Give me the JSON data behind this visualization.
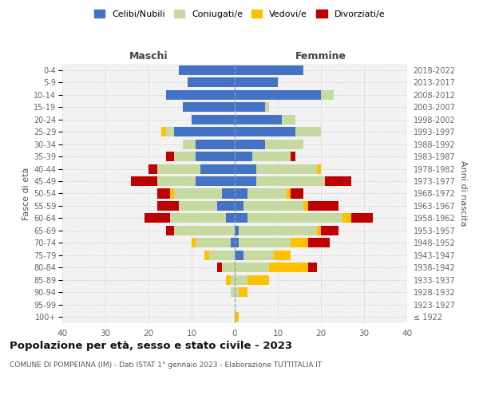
{
  "age_groups": [
    "100+",
    "95-99",
    "90-94",
    "85-89",
    "80-84",
    "75-79",
    "70-74",
    "65-69",
    "60-64",
    "55-59",
    "50-54",
    "45-49",
    "40-44",
    "35-39",
    "30-34",
    "25-29",
    "20-24",
    "15-19",
    "10-14",
    "5-9",
    "0-4"
  ],
  "birth_years": [
    "≤ 1922",
    "1923-1927",
    "1928-1932",
    "1933-1937",
    "1938-1942",
    "1943-1947",
    "1948-1952",
    "1953-1957",
    "1958-1962",
    "1963-1967",
    "1968-1972",
    "1973-1977",
    "1978-1982",
    "1983-1987",
    "1988-1992",
    "1993-1997",
    "1998-2002",
    "2003-2007",
    "2008-2012",
    "2013-2017",
    "2018-2022"
  ],
  "male_celibi": [
    0,
    0,
    0,
    0,
    0,
    0,
    1,
    0,
    2,
    4,
    3,
    9,
    8,
    9,
    9,
    14,
    10,
    12,
    16,
    11,
    13
  ],
  "male_coniugati": [
    0,
    0,
    1,
    1,
    3,
    6,
    8,
    14,
    13,
    9,
    11,
    9,
    10,
    5,
    3,
    2,
    0,
    0,
    0,
    0,
    0
  ],
  "male_vedovi": [
    0,
    0,
    0,
    1,
    0,
    1,
    1,
    0,
    0,
    0,
    1,
    0,
    0,
    0,
    0,
    1,
    0,
    0,
    0,
    0,
    0
  ],
  "male_divorziati": [
    0,
    0,
    0,
    0,
    1,
    0,
    0,
    2,
    6,
    5,
    3,
    6,
    2,
    2,
    0,
    0,
    0,
    0,
    0,
    0,
    0
  ],
  "female_celibi": [
    0,
    0,
    0,
    0,
    0,
    2,
    1,
    1,
    3,
    2,
    3,
    5,
    5,
    4,
    7,
    14,
    11,
    7,
    20,
    10,
    16
  ],
  "female_coniugati": [
    0,
    0,
    1,
    3,
    8,
    7,
    12,
    18,
    22,
    14,
    9,
    16,
    14,
    9,
    9,
    6,
    3,
    1,
    3,
    0,
    0
  ],
  "female_vedovi": [
    1,
    0,
    2,
    5,
    9,
    4,
    4,
    1,
    2,
    1,
    1,
    0,
    1,
    0,
    0,
    0,
    0,
    0,
    0,
    0,
    0
  ],
  "female_divorziati": [
    0,
    0,
    0,
    0,
    2,
    0,
    5,
    4,
    5,
    7,
    3,
    6,
    0,
    1,
    0,
    0,
    0,
    0,
    0,
    0,
    0
  ],
  "color_celibi": "#4472c4",
  "color_coniugati": "#c5d9a0",
  "color_vedovi": "#ffc000",
  "color_divorziati": "#c00000",
  "title": "Popolazione per età, sesso e stato civile - 2023",
  "subtitle": "COMUNE DI POMPEIANA (IM) - Dati ISTAT 1° gennaio 2023 - Elaborazione TUTTITALIA.IT",
  "xlabel_left": "Maschi",
  "xlabel_right": "Femmine",
  "ylabel_left": "Fasce di età",
  "ylabel_right": "Anni di nascita",
  "xlim": 40,
  "bg_color": "#ffffff",
  "grid_color": "#cccccc",
  "legend_labels": [
    "Celibi/Nubili",
    "Coniugati/e",
    "Vedovi/e",
    "Divorziati/e"
  ]
}
